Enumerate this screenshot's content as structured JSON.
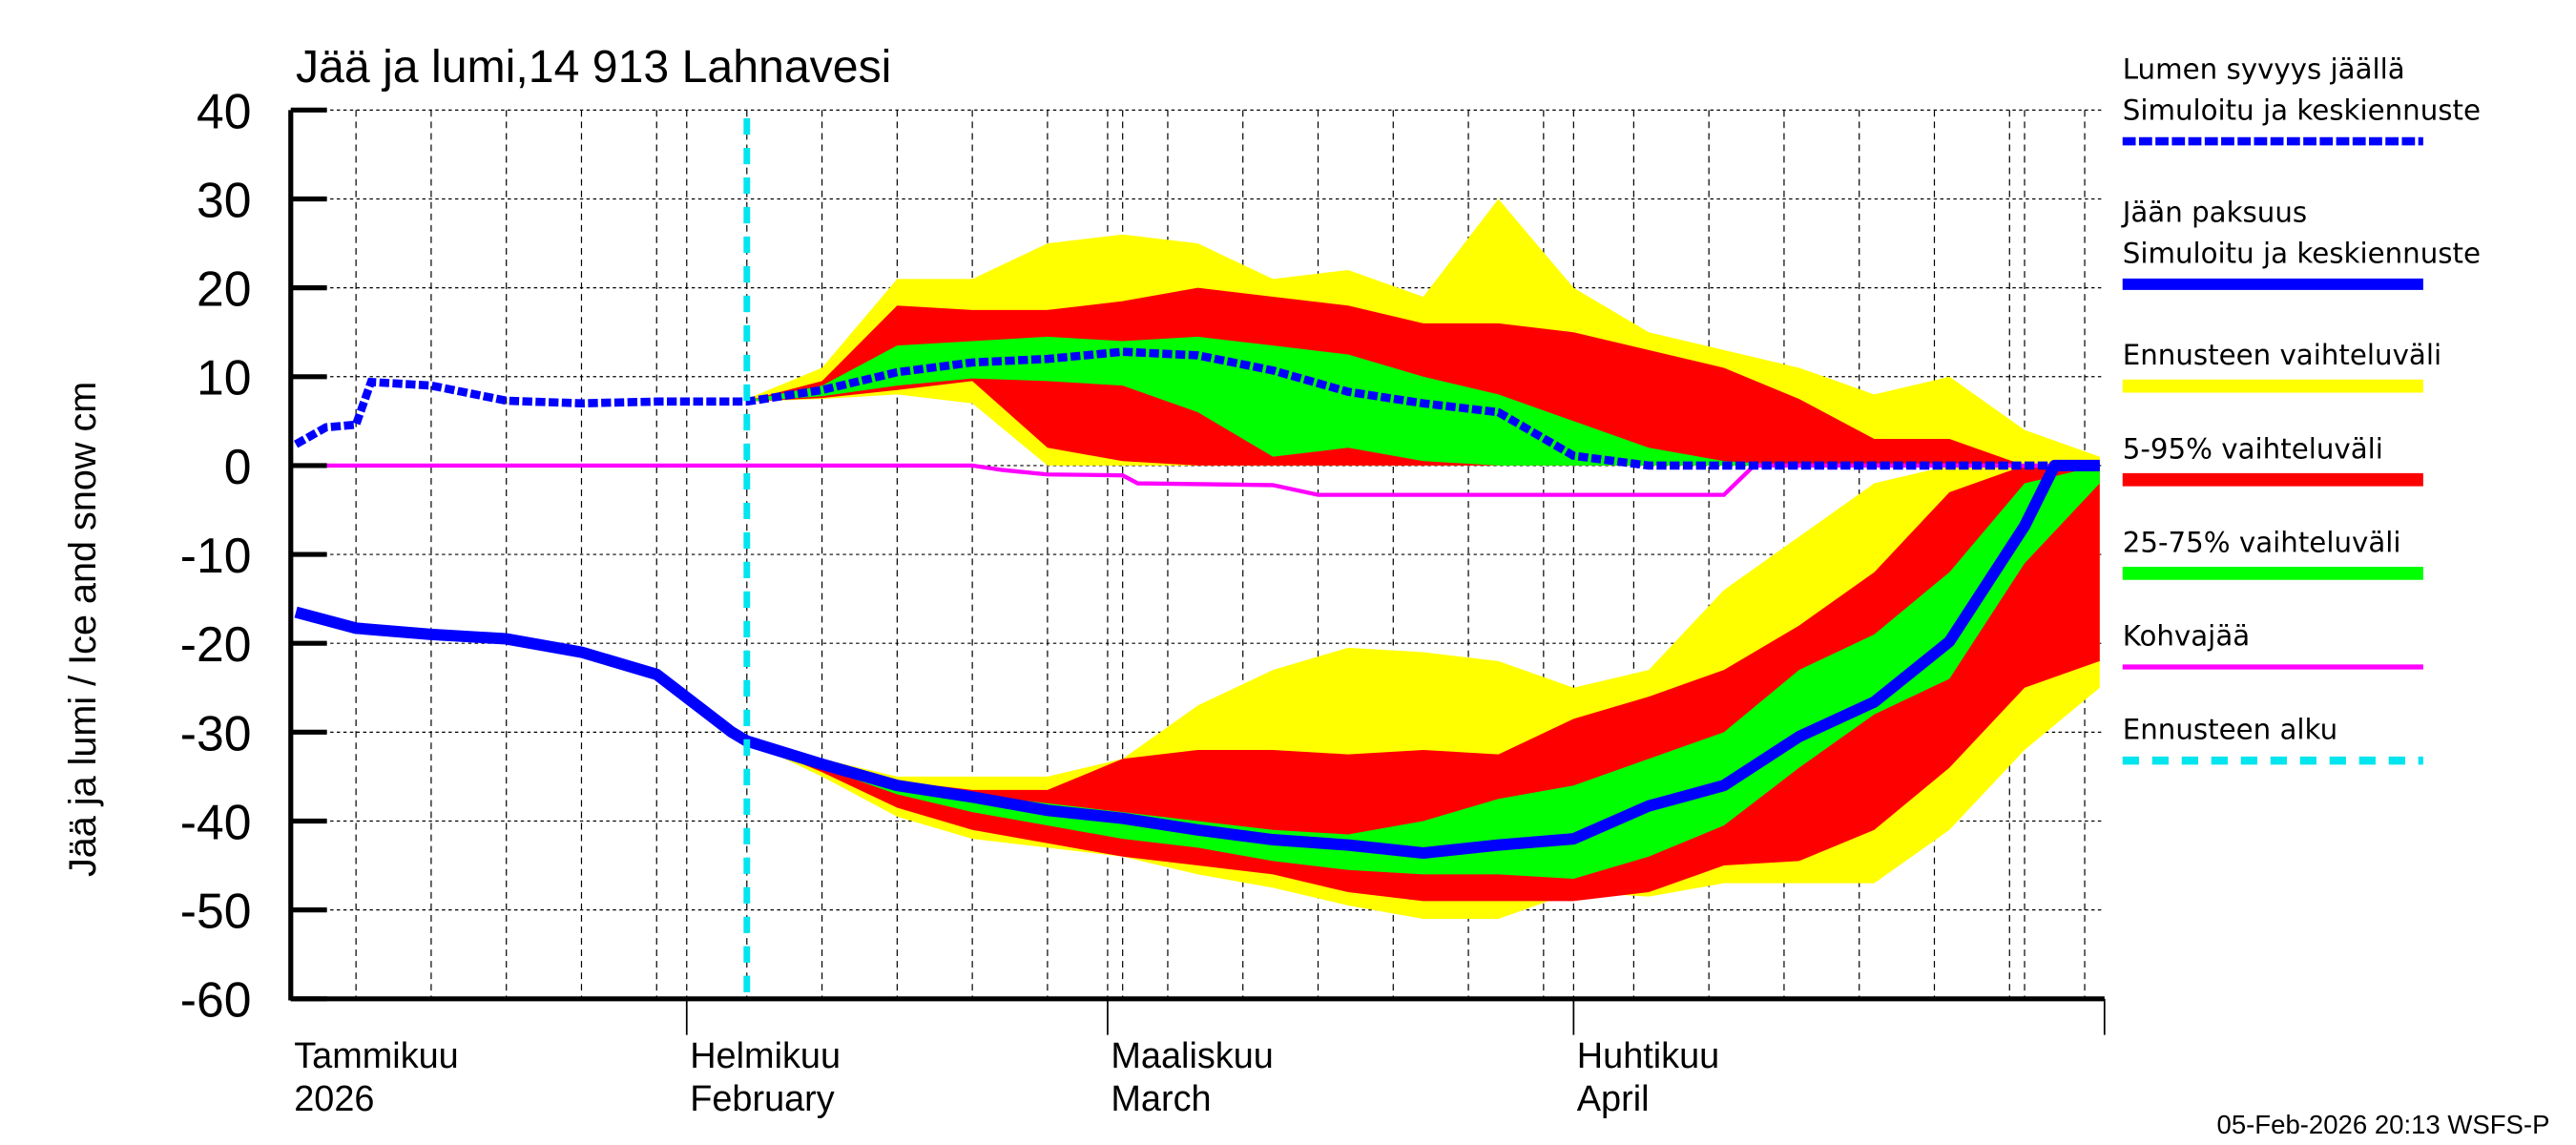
{
  "chart_data": {
    "type": "area",
    "title": "Jää ja lumi,14 913 Lahnavesi",
    "ylabel": "Jää ja lumi / Ice and snow    cm",
    "xlabel": "",
    "ylim": [
      -60,
      40
    ],
    "yticks": [
      40,
      30,
      20,
      10,
      0,
      -10,
      -20,
      -30,
      -40,
      -50,
      -60
    ],
    "xlim": [
      "2026-01-06",
      "2026-05-06"
    ],
    "grid": true,
    "legend_position": "right",
    "month_labels": [
      {
        "date": "2026-01-06",
        "line1": "Tammikuu",
        "line2": "2026"
      },
      {
        "date": "2026-02-01",
        "line1": "Helmikuu",
        "line2": "February"
      },
      {
        "date": "2026-03-01",
        "line1": "Maaliskuu",
        "line2": "March"
      },
      {
        "date": "2026-04-01",
        "line1": "Huhtikuu",
        "line2": "April"
      }
    ],
    "forecast_start": "2026-02-05",
    "band_dates": [
      "2026-02-05",
      "2026-02-10",
      "2026-02-15",
      "2026-02-20",
      "2026-02-25",
      "2026-03-02",
      "2026-03-07",
      "2026-03-12",
      "2026-03-17",
      "2026-03-22",
      "2026-03-27",
      "2026-04-01",
      "2026-04-06",
      "2026-04-11",
      "2026-04-16",
      "2026-04-21",
      "2026-04-26",
      "2026-05-01",
      "2026-05-06"
    ],
    "snow_bands": {
      "yellow": {
        "hi": [
          7.5,
          11,
          21,
          21,
          25,
          26,
          25,
          21,
          22,
          19,
          30,
          20,
          15,
          13,
          11,
          8,
          10,
          4,
          1
        ],
        "lo": [
          7.2,
          7.5,
          8,
          7,
          0,
          0,
          0,
          0,
          0,
          0,
          0,
          0,
          0,
          0,
          0,
          0,
          0,
          0,
          0
        ]
      },
      "red": {
        "hi": [
          7.3,
          9.5,
          18,
          17.5,
          17.5,
          18.5,
          20,
          19,
          18,
          16,
          16,
          15,
          13,
          11,
          7.5,
          3,
          3,
          0,
          0
        ],
        "lo": [
          7.2,
          7.6,
          8.5,
          9.5,
          2,
          0.5,
          0,
          0,
          0,
          0,
          0,
          0,
          0,
          0,
          0,
          0,
          0,
          0,
          0
        ]
      },
      "green": {
        "hi": [
          7.3,
          9,
          13.5,
          14,
          14.5,
          14,
          14.5,
          13.5,
          12.5,
          10,
          8,
          5,
          2,
          0.5,
          0,
          0,
          0,
          0,
          0
        ],
        "lo": [
          7.2,
          7.8,
          9,
          9.8,
          9.5,
          9,
          6,
          1,
          2,
          0.5,
          0,
          0,
          0,
          0,
          0,
          0,
          0,
          0,
          0
        ]
      }
    },
    "ice_bands": {
      "yellow": {
        "hi": [
          -31,
          -33,
          -35,
          -35,
          -35,
          -33,
          -27,
          -23,
          -20.5,
          -21,
          -22,
          -25,
          -23,
          -14,
          -8,
          -2,
          0,
          0,
          0
        ],
        "lo": [
          -31,
          -35,
          -39.5,
          -42,
          -43,
          -44,
          -46,
          -47.5,
          -49.5,
          -51,
          -51,
          -48,
          -48.5,
          -47,
          -47,
          -47,
          -41,
          -32,
          -25
        ]
      },
      "red": {
        "hi": [
          -31,
          -33.5,
          -35.5,
          -36.5,
          -36.5,
          -33,
          -32,
          -32,
          -32.5,
          -32,
          -32.5,
          -28.5,
          -26,
          -23,
          -18,
          -12,
          -3,
          0,
          0
        ],
        "lo": [
          -31,
          -34.5,
          -38.5,
          -41,
          -42.5,
          -44,
          -45,
          -46,
          -48,
          -49,
          -49,
          -49,
          -48,
          -45,
          -44.5,
          -41,
          -34,
          -25,
          -22
        ]
      },
      "green": {
        "hi": [
          -31,
          -33.6,
          -35.8,
          -37,
          -38,
          -39,
          -40,
          -41,
          -41.5,
          -40,
          -37.5,
          -36,
          -33,
          -30,
          -23,
          -19,
          -12,
          -2,
          0
        ],
        "lo": [
          -31,
          -34,
          -37,
          -39,
          -40.5,
          -42,
          -43,
          -44.5,
          -45.5,
          -46,
          -46,
          -46.5,
          -44,
          -40.5,
          -34,
          -28,
          -24,
          -11,
          -2
        ]
      }
    },
    "series": [
      {
        "name": "Lumen syvyys jäällä",
        "style": "dashed",
        "color": "#0000ff",
        "x": [
          "2026-01-06",
          "2026-01-08",
          "2026-01-10",
          "2026-01-11",
          "2026-01-15",
          "2026-01-20",
          "2026-01-25",
          "2026-01-30",
          "2026-02-04",
          "2026-02-05",
          "2026-02-10",
          "2026-02-15",
          "2026-02-20",
          "2026-02-25",
          "2026-03-02",
          "2026-03-07",
          "2026-03-12",
          "2026-03-17",
          "2026-03-22",
          "2026-03-27",
          "2026-04-01",
          "2026-04-06",
          "2026-04-16",
          "2026-04-26",
          "2026-05-06"
        ],
        "y": [
          2.4,
          4.3,
          4.6,
          9.4,
          9,
          7.3,
          7.0,
          7.2,
          7.2,
          7.2,
          8.5,
          10.5,
          11.6,
          12,
          12.8,
          12.4,
          10.7,
          8.3,
          7,
          6,
          1.1,
          0,
          0,
          0,
          0
        ]
      },
      {
        "name": "Jään paksuus",
        "style": "solid",
        "color": "#0000ff",
        "x": [
          "2026-01-06",
          "2026-01-10",
          "2026-01-15",
          "2026-01-20",
          "2026-01-25",
          "2026-01-30",
          "2026-02-04",
          "2026-02-05",
          "2026-02-10",
          "2026-02-15",
          "2026-02-20",
          "2026-02-25",
          "2026-03-02",
          "2026-03-07",
          "2026-03-12",
          "2026-03-17",
          "2026-03-22",
          "2026-03-27",
          "2026-04-01",
          "2026-04-06",
          "2026-04-11",
          "2026-04-16",
          "2026-04-21",
          "2026-04-26",
          "2026-05-01",
          "2026-05-03",
          "2026-05-06"
        ],
        "y": [
          -16.5,
          -18.3,
          -19,
          -19.5,
          -21,
          -23.5,
          -30,
          -31,
          -33.6,
          -36,
          -37.3,
          -38.8,
          -39.7,
          -41,
          -42.1,
          -42.7,
          -43.6,
          -42.7,
          -42,
          -38.3,
          -36,
          -30.5,
          -26.6,
          -19.8,
          -6.8,
          0,
          0
        ]
      },
      {
        "name": "Kohvajää",
        "style": "solid",
        "color": "#ff00ff",
        "x": [
          "2026-01-06",
          "2026-02-20",
          "2026-02-22",
          "2026-02-25",
          "2026-03-02",
          "2026-03-03",
          "2026-03-12",
          "2026-03-15",
          "2026-04-11",
          "2026-04-13",
          "2026-05-06"
        ],
        "y": [
          0,
          0,
          -0.5,
          -1,
          -1.1,
          -2,
          -2.2,
          -3.3,
          -3.3,
          0,
          0
        ]
      }
    ]
  },
  "legend": {
    "items": [
      {
        "line1": "Lumen syvyys jäällä",
        "line2": "Simuloitu ja keskiennuste",
        "color": "#0000ff",
        "style": "dashed"
      },
      {
        "line1": "Jään paksuus",
        "line2": "Simuloitu ja keskiennuste",
        "color": "#0000ff",
        "style": "solid"
      },
      {
        "line1": "Ennusteen vaihteluväli",
        "color": "#ffff00",
        "style": "band"
      },
      {
        "line1": "5-95% vaihteluväli",
        "color": "#ff0000",
        "style": "band"
      },
      {
        "line1": "25-75% vaihteluväli",
        "color": "#00ff00",
        "style": "band"
      },
      {
        "line1": "Kohvajää",
        "color": "#ff00ff",
        "style": "thin"
      },
      {
        "line1": "Ennusteen alku",
        "color": "#00e5ee",
        "style": "dashed-cyan"
      }
    ]
  },
  "footer": "05-Feb-2026 20:13 WSFS-P"
}
